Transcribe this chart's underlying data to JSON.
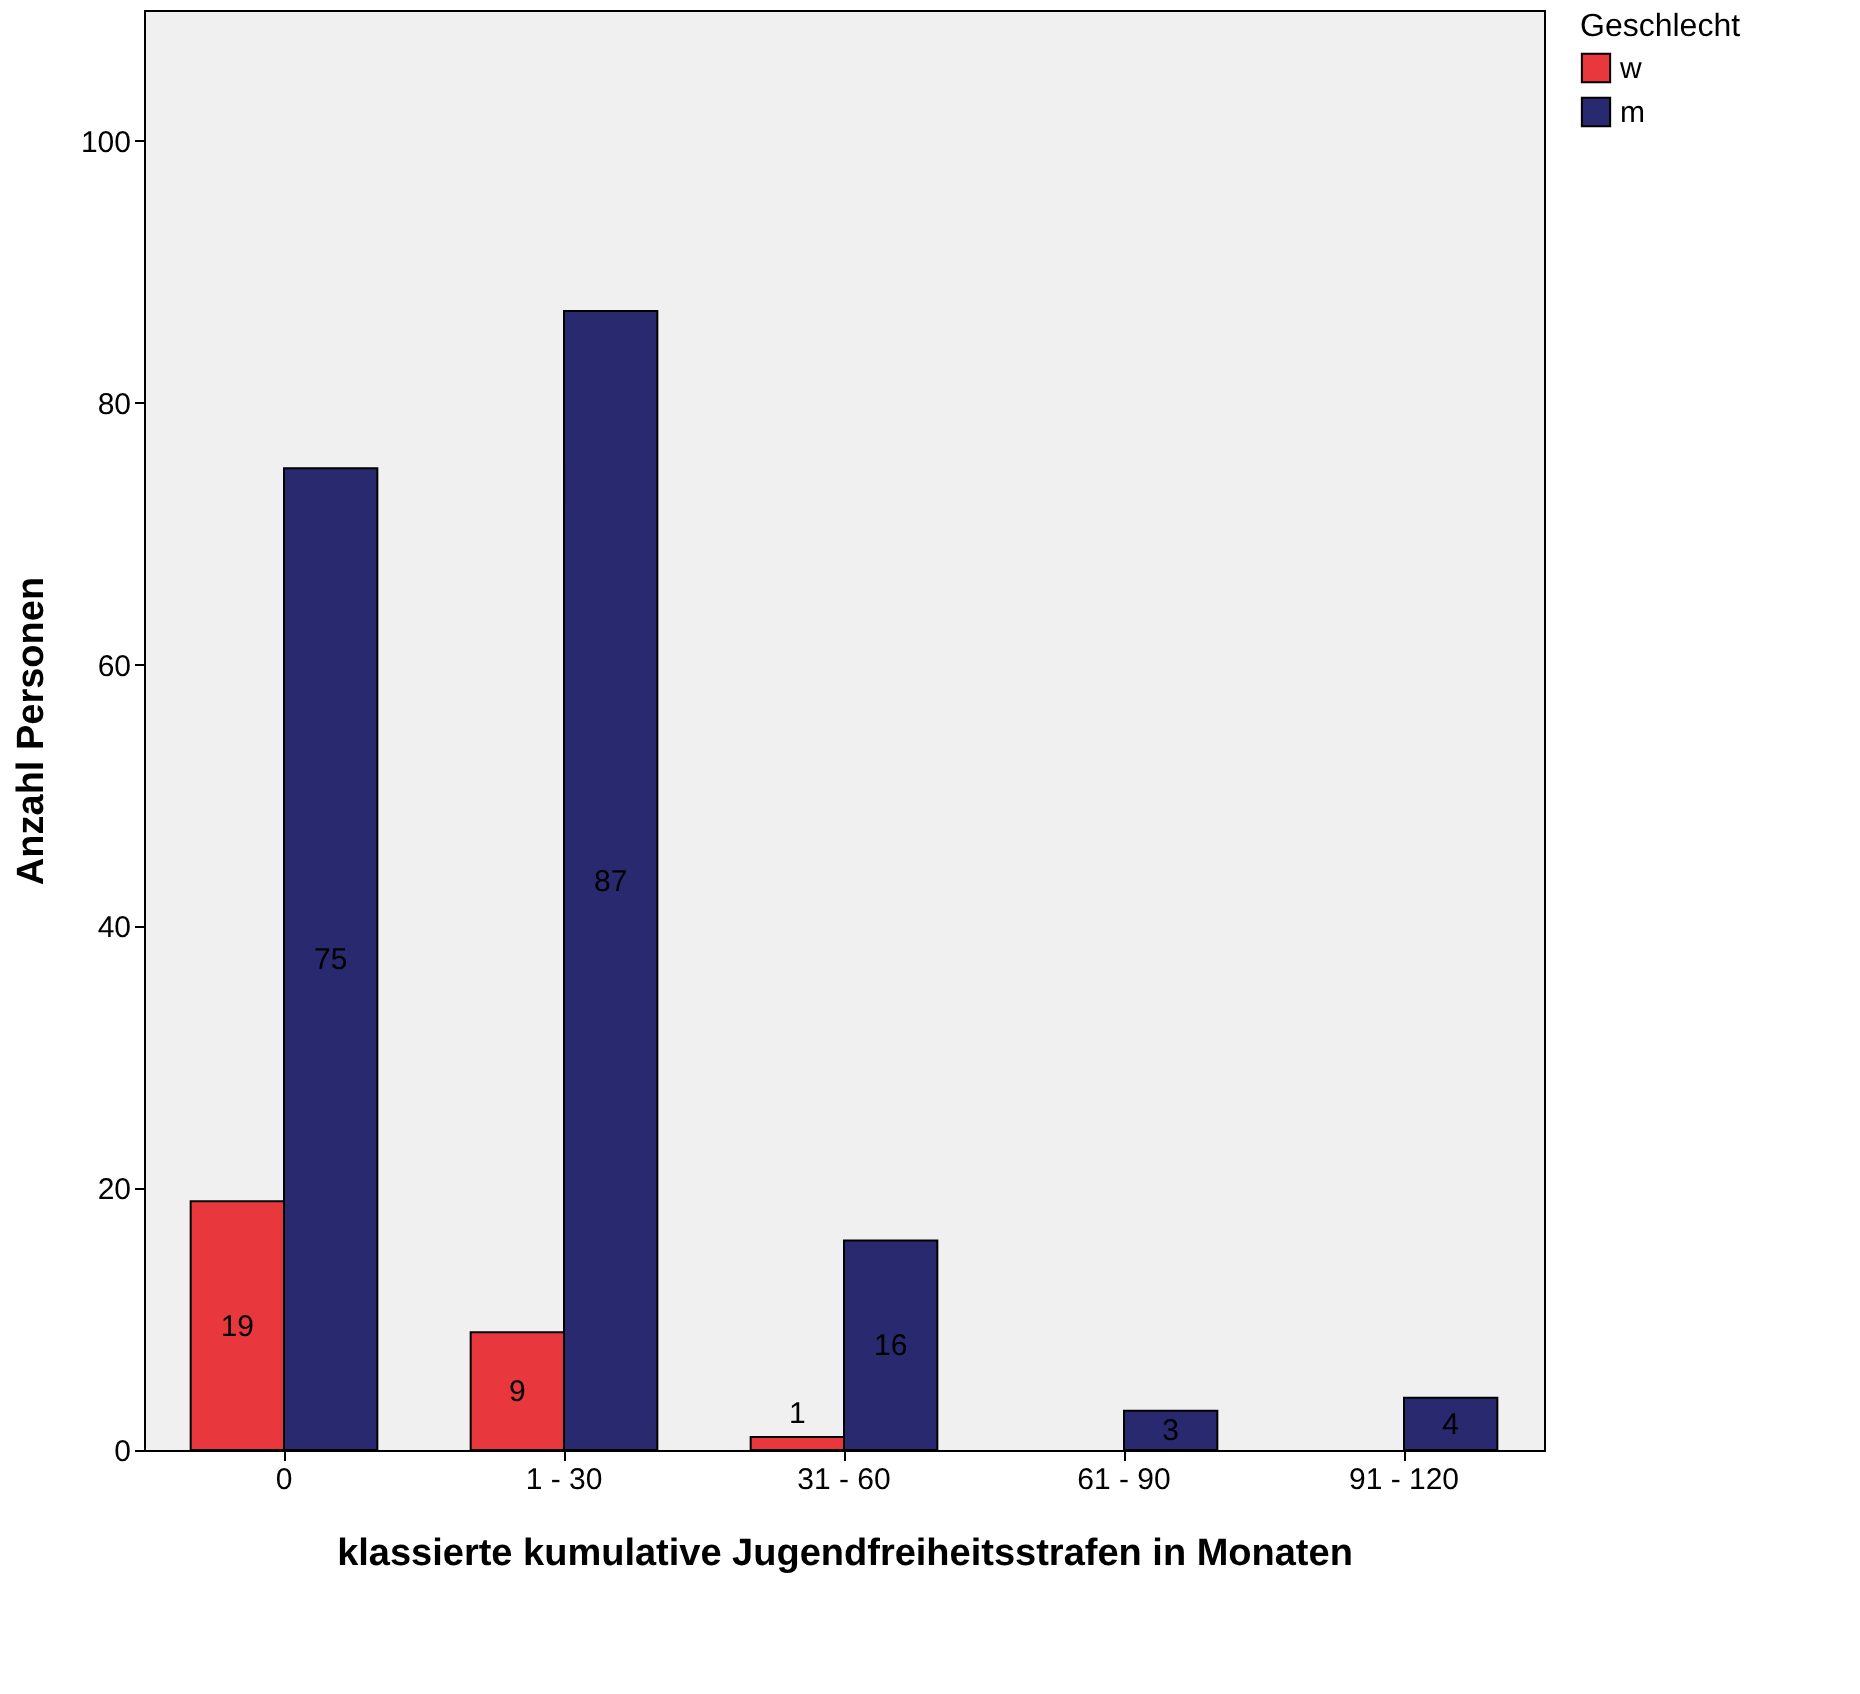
{
  "chart_data": {
    "type": "bar",
    "xlabel": "klassierte kumulative Jugendfreiheitsstrafen in Monaten",
    "ylabel": "Anzahl Personen",
    "legend_title": "Geschlecht",
    "legend": "top right",
    "grid": false,
    "data_labels": true,
    "categories": [
      "0",
      "1 - 30",
      "31 - 60",
      "61 - 90",
      "91 - 120"
    ],
    "series": [
      {
        "name": "w",
        "color": "#e8383d",
        "values": [
          19,
          9,
          1,
          null,
          null
        ]
      },
      {
        "name": "m",
        "color": "#28296e",
        "values": [
          75,
          87,
          16,
          3,
          4
        ]
      }
    ],
    "ylim": [
      0,
      110
    ],
    "yticks": [
      0,
      20,
      40,
      60,
      80,
      100
    ]
  }
}
